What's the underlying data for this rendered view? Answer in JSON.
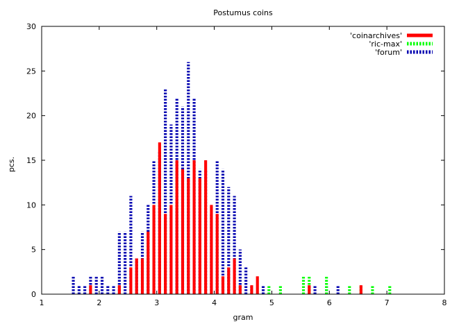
{
  "chart_data": {
    "type": "bar",
    "title": "Postumus coins",
    "xlabel": "gram",
    "ylabel": "pcs.",
    "xlim": [
      1,
      8
    ],
    "ylim": [
      0,
      30
    ],
    "x_ticks": [
      1,
      2,
      3,
      4,
      5,
      6,
      7,
      8
    ],
    "y_ticks": [
      0,
      5,
      10,
      15,
      20,
      25,
      30
    ],
    "grid": false,
    "legend_position": "top-right",
    "bar_width": 0.05,
    "series": [
      {
        "name": "'coinarchives'",
        "color": "#ff0000",
        "style": "solid",
        "x": [
          1.85,
          2.35,
          2.55,
          2.65,
          2.75,
          2.85,
          2.95,
          3.05,
          3.15,
          3.25,
          3.35,
          3.45,
          3.55,
          3.65,
          3.75,
          3.85,
          3.95,
          4.05,
          4.15,
          4.25,
          4.35,
          4.45,
          4.65,
          4.75,
          5.65,
          6.55
        ],
        "values": [
          1,
          1,
          3,
          4,
          4,
          7,
          10,
          17,
          9,
          10,
          15,
          14,
          13,
          15,
          13,
          15,
          10,
          9,
          2,
          3,
          4,
          1,
          1,
          2,
          1,
          1
        ]
      },
      {
        "name": "'ric-max'",
        "color": "#00ff00",
        "style": "dashed",
        "x": [
          4.95,
          5.15,
          5.55,
          5.65,
          5.95,
          6.35,
          6.55,
          6.75,
          7.05
        ],
        "values": [
          1,
          1,
          2,
          2,
          2,
          1,
          1,
          1,
          1
        ]
      },
      {
        "name": "'forum'",
        "color": "#0000b0",
        "style": "dashed",
        "x": [
          1.55,
          1.65,
          1.75,
          1.85,
          1.95,
          2.05,
          2.15,
          2.25,
          2.35,
          2.45,
          2.55,
          2.65,
          2.75,
          2.85,
          2.95,
          3.05,
          3.15,
          3.25,
          3.35,
          3.45,
          3.55,
          3.65,
          3.75,
          3.85,
          3.95,
          4.05,
          4.15,
          4.25,
          4.35,
          4.45,
          4.55,
          4.65,
          4.85,
          5.75,
          5.95,
          6.15
        ],
        "values": [
          2,
          1,
          1,
          2,
          2,
          2,
          1,
          1,
          7,
          7,
          11,
          4,
          7,
          10,
          15,
          16,
          23,
          19,
          22,
          21,
          26,
          22,
          14,
          14,
          9,
          15,
          14,
          12,
          11,
          5,
          3,
          1,
          1,
          1,
          1,
          1
        ]
      }
    ]
  }
}
